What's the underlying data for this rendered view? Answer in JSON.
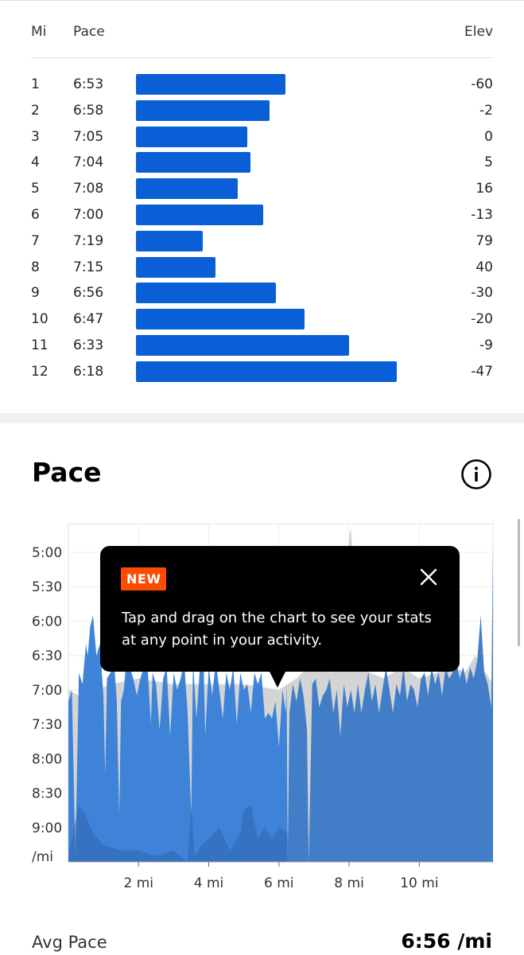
{
  "splits_table": {
    "col_mi": "Mi",
    "col_pace": "Pace",
    "col_elev": "Elev",
    "rows": [
      {
        "mi": "1",
        "pace": "6:53",
        "elev": "-60",
        "pace_sec": 413
      },
      {
        "mi": "2",
        "pace": "6:58",
        "elev": "-2",
        "pace_sec": 418
      },
      {
        "mi": "3",
        "pace": "7:05",
        "elev": "0",
        "pace_sec": 425
      },
      {
        "mi": "4",
        "pace": "7:04",
        "elev": "5",
        "pace_sec": 424
      },
      {
        "mi": "5",
        "pace": "7:08",
        "elev": "16",
        "pace_sec": 428
      },
      {
        "mi": "6",
        "pace": "7:00",
        "elev": "-13",
        "pace_sec": 420
      },
      {
        "mi": "7",
        "pace": "7:19",
        "elev": "79",
        "pace_sec": 439
      },
      {
        "mi": "8",
        "pace": "7:15",
        "elev": "40",
        "pace_sec": 435
      },
      {
        "mi": "9",
        "pace": "6:56",
        "elev": "-30",
        "pace_sec": 416
      },
      {
        "mi": "10",
        "pace": "6:47",
        "elev": "-20",
        "pace_sec": 407
      },
      {
        "mi": "11",
        "pace": "6:33",
        "elev": "-9",
        "pace_sec": 393
      },
      {
        "mi": "12",
        "pace": "6:18",
        "elev": "-47",
        "pace_sec": 378
      }
    ],
    "bar_color": "#0a5fd6"
  },
  "pace_section": {
    "title": "Pace",
    "info_icon": "info-icon"
  },
  "tooltip": {
    "badge": "NEW",
    "badge_color": "#fc4c02",
    "text": "Tap and drag on the chart to see your stats at any point in your activity.",
    "close_icon": "close-icon"
  },
  "chart_data": {
    "type": "area",
    "x_unit": "mi",
    "y_unit": "/mi",
    "xlim": [
      0,
      12.1
    ],
    "ylim": [
      "9:30",
      "4:35"
    ],
    "y_ticks": [
      "5:00",
      "5:30",
      "6:00",
      "6:30",
      "7:00",
      "7:30",
      "8:00",
      "8:30",
      "9:00",
      "/mi"
    ],
    "x_ticks": [
      "2 mi",
      "4 mi",
      "6 mi",
      "8 mi",
      "10 mi"
    ],
    "x_tick_values": [
      2,
      4,
      6,
      8,
      10
    ],
    "grid": true,
    "series": [
      {
        "color": "#3b82d8",
        "x": [
          0.0,
          0.1,
          0.2,
          0.3,
          0.4,
          0.5,
          0.55,
          0.62,
          0.7,
          0.8,
          0.9,
          1.0,
          1.05,
          1.1,
          1.2,
          1.3,
          1.38,
          1.45,
          1.5,
          1.58,
          1.65,
          1.75,
          1.85,
          1.95,
          2.05,
          2.15,
          2.25,
          2.35,
          2.4,
          2.5,
          2.6,
          2.7,
          2.8,
          2.9,
          3.0,
          3.1,
          3.2,
          3.3,
          3.4,
          3.5,
          3.55,
          3.65,
          3.75,
          3.85,
          3.9,
          4.0,
          4.1,
          4.2,
          4.3,
          4.4,
          4.5,
          4.6,
          4.7,
          4.8,
          4.9,
          5.0,
          5.1,
          5.2,
          5.3,
          5.4,
          5.5,
          5.6,
          5.7,
          5.8,
          5.9,
          6.0,
          6.1,
          6.2,
          6.22,
          6.25
        ],
        "y": [
          "7:10",
          "7:00",
          "9:25",
          "6:45",
          "6:55",
          "6:20",
          "6:30",
          "6:05",
          "5:55",
          "6:30",
          "6:20",
          "7:05",
          "8:15",
          "6:50",
          "6:45",
          "6:35",
          "7:10",
          "8:50",
          "7:10",
          "7:00",
          "6:35",
          "6:40",
          "6:50",
          "7:05",
          "6:50",
          "6:40",
          "6:35",
          "7:30",
          "6:45",
          "6:55",
          "7:35",
          "6:50",
          "6:40",
          "7:40",
          "6:45",
          "7:00",
          "6:50",
          "6:35",
          "7:20",
          "8:50",
          "6:35",
          "7:25",
          "6:40",
          "6:30",
          "7:40",
          "6:40",
          "7:05",
          "6:35",
          "7:00",
          "7:25",
          "6:45",
          "7:00",
          "6:40",
          "7:30",
          "6:45",
          "7:00",
          "6:55",
          "7:20",
          "6:45",
          "6:55",
          "6:45",
          "7:25",
          "7:20",
          "7:25",
          "7:10",
          "7:50",
          "7:00",
          "7:20",
          "6:55",
          "9:30"
        ]
      },
      {
        "color": "#3e7cc7",
        "x": [
          6.25,
          6.3,
          6.4,
          6.5,
          6.6,
          6.7,
          6.8,
          6.85,
          6.95,
          7.05,
          7.15,
          7.25,
          7.35,
          7.45,
          7.55,
          7.65,
          7.75,
          7.85,
          7.95,
          8.05,
          8.15,
          8.25,
          8.35,
          8.45,
          8.55,
          8.65,
          8.75,
          8.85,
          8.95,
          9.05,
          9.15,
          9.25,
          9.35,
          9.45,
          9.55,
          9.65,
          9.75,
          9.85,
          9.95,
          10.05,
          10.15,
          10.25,
          10.35,
          10.45,
          10.55,
          10.65,
          10.75,
          10.85,
          10.95,
          11.05,
          11.15,
          11.25,
          11.35,
          11.45,
          11.55,
          11.65,
          11.75,
          11.85,
          11.95,
          12.05,
          12.1
        ],
        "y": [
          "9:30",
          "7:20",
          "6:55",
          "7:10",
          "6:50",
          "7:05",
          "7:35",
          "9:30",
          "6:55",
          "6:50",
          "7:15",
          "7:05",
          "7:00",
          "6:50",
          "7:20",
          "7:00",
          "7:40",
          "6:55",
          "7:15",
          "7:00",
          "7:20",
          "6:55",
          "7:20",
          "7:00",
          "6:45",
          "7:10",
          "6:55",
          "7:20",
          "7:00",
          "6:40",
          "7:00",
          "7:20",
          "6:55",
          "7:05",
          "6:40",
          "7:10",
          "6:55",
          "7:00",
          "7:15",
          "6:50",
          "6:45",
          "7:05",
          "6:40",
          "6:55",
          "6:45",
          "7:05",
          "6:40",
          "6:50",
          "6:45",
          "6:35",
          "6:50",
          "6:40",
          "6:55",
          "6:40",
          "6:50",
          "6:35",
          "5:55",
          "6:45",
          "6:55",
          "7:15",
          "4:55"
        ]
      },
      {
        "color": "#d4d4d4",
        "x": [
          0.0,
          0.3,
          0.5,
          0.8,
          1.2,
          2.0,
          3.0,
          4.0,
          5.0,
          6.0,
          6.25,
          6.5,
          7.0,
          7.2,
          7.5,
          7.8,
          8.0,
          8.05,
          8.1,
          8.3,
          8.6,
          9.0,
          9.5,
          10.0,
          10.5,
          11.0,
          11.3,
          11.6,
          11.9,
          12.1
        ],
        "y": [
          "7:00",
          "7:05",
          "7:15",
          "7:00",
          "6:55",
          "6:50",
          "6:55",
          "6:55",
          "6:55",
          "7:00",
          "6:55",
          "6:50",
          "6:35",
          "6:40",
          "6:45",
          "6:30",
          "4:45",
          "4:40",
          "5:00",
          "6:40",
          "6:45",
          "6:50",
          "6:40",
          "6:50",
          "6:45",
          "6:40",
          "6:45",
          "6:30",
          "6:45",
          "6:55"
        ]
      }
    ]
  },
  "summary": {
    "avg_label": "Avg Pace",
    "avg_value": "6:56 /mi"
  }
}
